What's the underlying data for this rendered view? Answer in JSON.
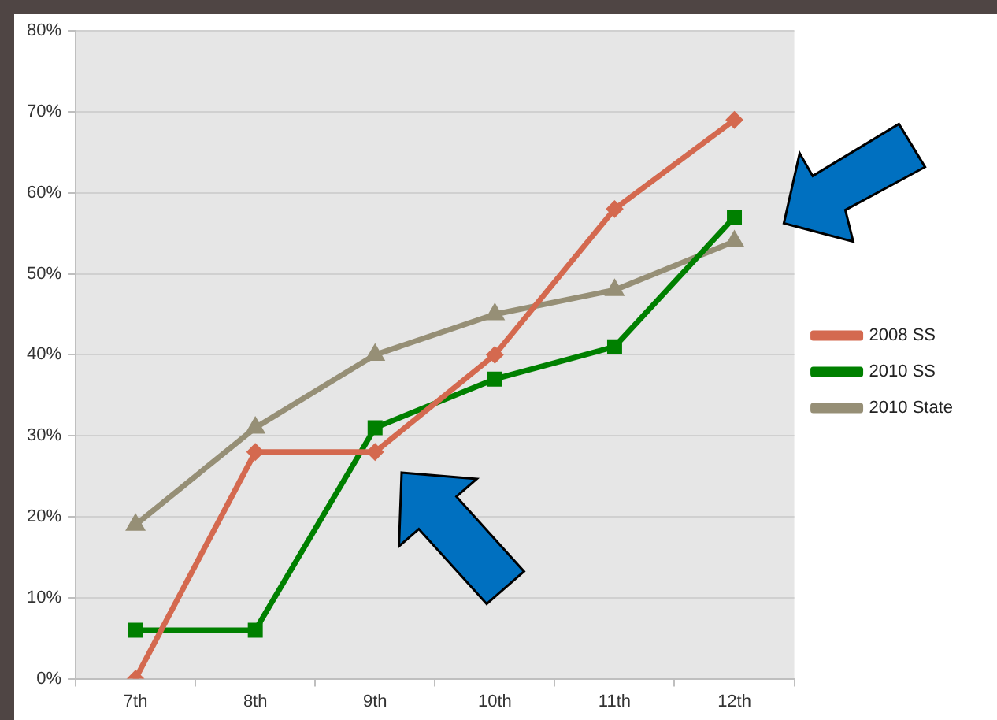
{
  "chart_data": {
    "type": "line",
    "categories": [
      "7th",
      "8th",
      "9th",
      "10th",
      "11th",
      "12th"
    ],
    "series": [
      {
        "name": "2008 SS",
        "color": "#d4694f",
        "values": [
          0,
          28,
          28,
          40,
          58,
          69
        ],
        "marker": "diamond"
      },
      {
        "name": "2010 SS",
        "color": "#008000",
        "values": [
          6,
          6,
          31,
          37,
          41,
          57
        ],
        "marker": "square"
      },
      {
        "name": "2010 State",
        "color": "#968f76",
        "values": [
          19,
          31,
          40,
          45,
          48,
          54
        ],
        "marker": "triangle"
      }
    ],
    "ylim": [
      0,
      80
    ],
    "yticks": [
      {
        "value": 0,
        "label": "0%"
      },
      {
        "value": 10,
        "label": "10%"
      },
      {
        "value": 20,
        "label": "20%"
      },
      {
        "value": 30,
        "label": "30%"
      },
      {
        "value": 40,
        "label": "40%"
      },
      {
        "value": 50,
        "label": "50%"
      },
      {
        "value": 60,
        "label": "60%"
      },
      {
        "value": 70,
        "label": "70%"
      },
      {
        "value": 80,
        "label": "80%"
      }
    ],
    "grid": "y",
    "legend": "right",
    "line_style": "solid"
  }
}
